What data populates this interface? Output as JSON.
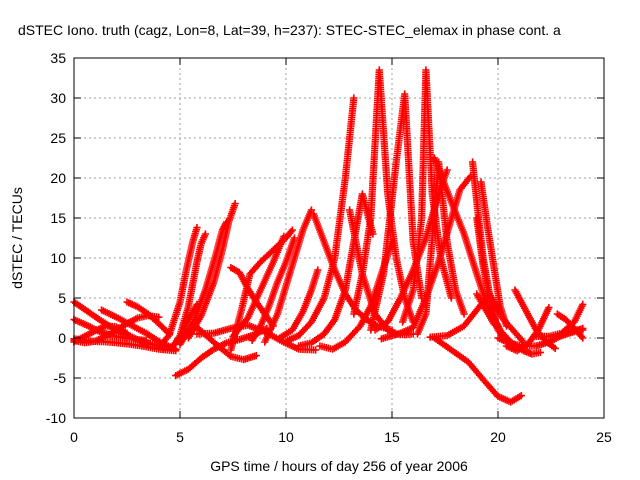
{
  "chart_data": {
    "type": "scatter",
    "title": "dSTEC Iono. truth (cagz, Lon=8, Lat=39, h=237): STEC-STEC_elemax in phase cont. a",
    "xlabel": "GPS time / hours of day 256 of year 2006",
    "ylabel": "dSTEC  / TECUs",
    "xlim": [
      0,
      25
    ],
    "ylim": [
      -10,
      35
    ],
    "xticks": [
      "0",
      "5",
      "10",
      "15",
      "20",
      "25"
    ],
    "yticks": [
      "-10",
      "-5",
      "0",
      "5",
      "10",
      "15",
      "20",
      "25",
      "30",
      "35"
    ],
    "grid": true,
    "legend": "none",
    "marker": "plus",
    "color": "#ff0000",
    "series": [
      {
        "x": [
          0.0,
          0.6,
          1.2,
          1.8,
          2.4,
          3.0,
          3.6,
          4.2,
          4.6
        ],
        "y": [
          4.5,
          3.4,
          2.3,
          1.3,
          0.5,
          -0.2,
          -0.7,
          -1.1,
          -1.3
        ]
      },
      {
        "x": [
          0.0,
          0.6,
          1.2,
          1.8,
          2.4,
          3.0,
          3.4
        ],
        "y": [
          2.3,
          1.6,
          0.8,
          0.3,
          0.0,
          -0.2,
          -0.3
        ]
      },
      {
        "x": [
          0.0,
          0.5,
          1.0,
          1.5,
          2.0,
          2.5,
          3.0,
          3.5,
          4.0
        ],
        "y": [
          -0.3,
          -0.6,
          -0.4,
          0.2,
          1.0,
          1.8,
          2.5,
          2.8,
          2.6
        ]
      },
      {
        "x": [
          0.0,
          0.5,
          1.0,
          1.5,
          2.0,
          2.5
        ],
        "y": [
          -0.5,
          0.2,
          0.9,
          1.5,
          1.4,
          0.6
        ]
      },
      {
        "x": [
          1.3,
          2.0,
          2.7,
          3.4,
          4.1,
          4.8
        ],
        "y": [
          3.5,
          2.6,
          1.6,
          0.6,
          -0.6,
          -1.4
        ]
      },
      {
        "x": [
          2.5,
          3.0,
          3.5,
          4.0,
          4.5
        ],
        "y": [
          4.5,
          3.9,
          3.0,
          1.8,
          0.5
        ]
      },
      {
        "x": [
          0.0,
          0.8,
          1.6,
          2.4,
          3.2,
          4.0,
          4.8
        ],
        "y": [
          -0.1,
          -0.4,
          -0.5,
          -0.7,
          -1.0,
          -1.4,
          -1.6
        ]
      },
      {
        "x": [
          4.2,
          4.6,
          5.0,
          5.4,
          5.8
        ],
        "y": [
          -1.4,
          -1.2,
          0.0,
          2.3,
          4.2
        ]
      },
      {
        "x": [
          4.0,
          4.5,
          5.0,
          5.3,
          5.6,
          5.8
        ],
        "y": [
          -1.2,
          0.4,
          4.5,
          8.5,
          12.0,
          13.8
        ]
      },
      {
        "x": [
          4.6,
          5.0,
          5.4,
          5.8,
          6.0,
          6.2
        ],
        "y": [
          -1.3,
          0.3,
          4.0,
          9.5,
          11.8,
          13.0
        ]
      },
      {
        "x": [
          5.0,
          5.6,
          6.2,
          6.7,
          7.0,
          7.2
        ],
        "y": [
          -0.8,
          1.8,
          6.0,
          10.5,
          13.5,
          14.5
        ]
      },
      {
        "x": [
          5.4,
          6.0,
          6.6,
          7.0,
          7.3,
          7.6
        ],
        "y": [
          0.0,
          2.8,
          7.0,
          11.0,
          14.5,
          16.8
        ]
      },
      {
        "x": [
          4.8,
          5.4,
          6.0,
          6.6,
          7.2,
          7.8,
          8.5,
          9.1
        ],
        "y": [
          -4.7,
          -3.9,
          -2.5,
          -1.4,
          -0.6,
          -0.2,
          0.4,
          1.2
        ]
      },
      {
        "x": [
          5.6,
          6.2,
          6.8,
          7.4,
          8.0,
          8.6
        ],
        "y": [
          1.8,
          0.4,
          -1.0,
          -2.3,
          -2.7,
          -2.2
        ]
      },
      {
        "x": [
          7.4,
          7.6,
          7.9,
          8.3,
          8.8,
          9.4,
          10.0,
          10.3
        ],
        "y": [
          -1.5,
          0.5,
          3.5,
          8.0,
          9.5,
          11.0,
          12.5,
          13.5
        ]
      },
      {
        "x": [
          7.4,
          7.8,
          8.2,
          8.6,
          9.0,
          9.4
        ],
        "y": [
          8.8,
          8.2,
          6.2,
          4.5,
          3.0,
          1.5
        ]
      },
      {
        "x": [
          7.5,
          8.2,
          8.8,
          9.4,
          9.9
        ],
        "y": [
          0.2,
          2.5,
          6.0,
          9.5,
          12.7
        ]
      },
      {
        "x": [
          9.0,
          9.6,
          10.0,
          10.4,
          10.8,
          11.2
        ],
        "y": [
          -0.5,
          3.0,
          6.5,
          10.0,
          13.5,
          16.0
        ]
      },
      {
        "x": [
          8.4,
          8.8,
          9.2,
          9.6,
          10.0,
          10.4
        ],
        "y": [
          -0.3,
          1.5,
          4.0,
          7.0,
          9.5,
          12.5
        ]
      },
      {
        "x": [
          5.8,
          6.6,
          7.4,
          8.2,
          9.0,
          9.8,
          10.6,
          11.4
        ],
        "y": [
          0.5,
          0.6,
          1.2,
          1.6,
          0.8,
          -0.4,
          -1.4,
          -1.5
        ]
      },
      {
        "x": [
          9.7,
          10.3,
          10.8,
          11.2,
          11.5
        ],
        "y": [
          0.0,
          1.0,
          3.3,
          6.0,
          8.5
        ]
      },
      {
        "x": [
          11.3,
          11.8,
          12.3,
          12.8,
          13.3,
          13.8,
          14.3,
          15.0
        ],
        "y": [
          15.5,
          12.0,
          8.5,
          5.5,
          3.5,
          2.3,
          1.5,
          1.0
        ]
      },
      {
        "x": [
          10.0,
          10.6,
          11.2,
          11.8,
          12.3,
          12.8,
          13.2
        ],
        "y": [
          -0.4,
          0.3,
          2.0,
          5.0,
          10.0,
          20.0,
          30.0
        ]
      },
      {
        "x": [
          10.6,
          11.2,
          11.8,
          12.3,
          12.8,
          13.2,
          13.6,
          14.1
        ],
        "y": [
          -1.0,
          -0.6,
          0.5,
          2.3,
          6.0,
          12.0,
          18.0,
          13.0
        ]
      },
      {
        "x": [
          11.6,
          12.2,
          12.8,
          13.5,
          14.0,
          14.5,
          15.0
        ],
        "y": [
          -1.0,
          -1.4,
          -0.5,
          1.5,
          4.0,
          8.0,
          12.0
        ]
      },
      {
        "x": [
          13.0,
          13.6,
          14.2,
          14.8,
          15.2,
          15.6,
          16.0
        ],
        "y": [
          16.0,
          8.0,
          3.0,
          1.0,
          0.5,
          0.4,
          0.5
        ]
      },
      {
        "x": [
          13.2,
          13.6,
          14.0,
          14.4,
          14.8,
          15.2,
          15.6,
          16.0
        ],
        "y": [
          3.0,
          8.0,
          15.0,
          33.5,
          18.0,
          10.0,
          5.0,
          2.0
        ]
      },
      {
        "x": [
          14.0,
          14.6,
          15.2,
          15.6,
          16.0,
          16.4
        ],
        "y": [
          1.0,
          8.0,
          22.0,
          30.5,
          12.0,
          5.0
        ]
      },
      {
        "x": [
          14.2,
          14.8,
          15.4,
          16.0,
          16.6,
          17.2,
          17.6
        ],
        "y": [
          1.0,
          2.0,
          5.0,
          8.5,
          12.5,
          18.0,
          21.0
        ]
      },
      {
        "x": [
          15.5,
          16.0,
          16.4,
          16.6,
          16.9,
          17.3,
          17.8
        ],
        "y": [
          2.0,
          6.0,
          15.0,
          33.5,
          18.0,
          10.0,
          5.0
        ]
      },
      {
        "x": [
          14.5,
          15.4,
          16.0,
          16.6,
          17.2,
          17.7,
          18.2,
          18.7
        ],
        "y": [
          -0.1,
          0.6,
          1.3,
          5.0,
          9.5,
          14.0,
          18.5,
          20.2
        ]
      },
      {
        "x": [
          16.2,
          16.6,
          17.2,
          17.6,
          18.0,
          18.4
        ],
        "y": [
          0.5,
          3.0,
          22.0,
          12.0,
          6.0,
          3.0
        ]
      },
      {
        "x": [
          17.0,
          17.8,
          18.4,
          19.0,
          19.5,
          20.0
        ],
        "y": [
          22.5,
          17.0,
          13.0,
          8.0,
          4.0,
          1.5
        ]
      },
      {
        "x": [
          16.8,
          17.6,
          18.4,
          19.0,
          19.6,
          20.2,
          21.2
        ],
        "y": [
          0.1,
          0.3,
          1.5,
          3.5,
          5.5,
          2.5,
          -0.5
        ]
      },
      {
        "x": [
          18.8,
          19.0,
          19.3,
          19.7,
          20.0,
          20.4
        ],
        "y": [
          22.0,
          17.0,
          10.0,
          4.0,
          1.0,
          -0.4
        ]
      },
      {
        "x": [
          19.2,
          19.5,
          19.8,
          20.1,
          20.4
        ],
        "y": [
          19.5,
          14.0,
          9.0,
          4.0,
          1.5
        ]
      },
      {
        "x": [
          19.0,
          19.3,
          19.6,
          19.9,
          20.3
        ],
        "y": [
          15.0,
          9.0,
          5.0,
          2.0,
          0.0
        ]
      },
      {
        "x": [
          17.0,
          17.8,
          18.6,
          19.4,
          20.0,
          20.6,
          21.1
        ],
        "y": [
          0.0,
          -1.5,
          -3.0,
          -5.5,
          -7.3,
          -8.0,
          -7.2
        ]
      },
      {
        "x": [
          19.0,
          19.8,
          20.6,
          21.2,
          21.6,
          22.0
        ],
        "y": [
          5.5,
          1.8,
          -0.5,
          -1.6,
          -2.0,
          -1.8
        ]
      },
      {
        "x": [
          20.4,
          20.9,
          21.4,
          21.9,
          22.4
        ],
        "y": [
          -1.0,
          -1.6,
          -0.8,
          1.0,
          3.8
        ]
      },
      {
        "x": [
          20.0,
          20.6,
          21.2,
          21.8,
          22.4,
          23.0,
          23.6,
          24.0
        ],
        "y": [
          0.0,
          -0.7,
          -1.0,
          -1.0,
          -0.5,
          0.3,
          0.8,
          1.0
        ]
      },
      {
        "x": [
          21.8,
          22.4,
          23.0,
          23.6,
          24.0
        ],
        "y": [
          0.2,
          0.2,
          0.6,
          2.0,
          4.2
        ]
      },
      {
        "x": [
          22.8,
          23.2,
          23.6,
          24.0
        ],
        "y": [
          3.0,
          2.3,
          1.2,
          0.0
        ]
      },
      {
        "x": [
          23.0,
          23.5,
          24.0
        ],
        "y": [
          0.3,
          0.8,
          1.2
        ]
      },
      {
        "x": [
          20.8,
          21.3,
          21.8,
          22.3,
          22.7
        ],
        "y": [
          6.0,
          3.5,
          1.0,
          -0.5,
          -1.3
        ]
      }
    ]
  }
}
